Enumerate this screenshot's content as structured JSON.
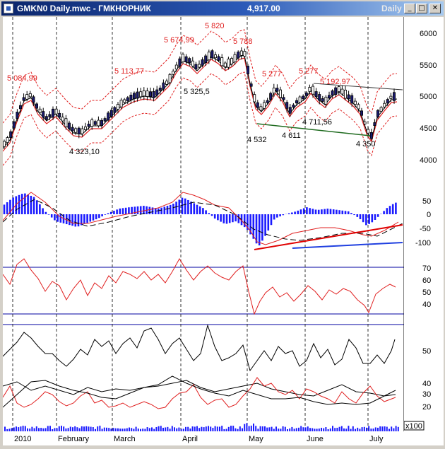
{
  "window": {
    "title": "GMKN0 Daily.mwc - ГМКНОРНИК",
    "price": "4,917.00",
    "period": "Daily",
    "buttons": {
      "minimize": "_",
      "maximize": "□",
      "close": "✕"
    }
  },
  "colors": {
    "background": "#ffffff",
    "candle_up": "#ffffff",
    "candle_down": "#1a1a6e",
    "ma_red": "#e02020",
    "ma_black": "#000000",
    "band_red": "#e02020",
    "histogram": "#1a1aff",
    "trend_red": "#e00000",
    "trend_blue": "#2040e0",
    "trend_green": "#1f6b1f",
    "panel_line": "#0000a0"
  },
  "price_panel": {
    "axis_ticks": [
      "6000",
      "5500",
      "5000",
      "4500",
      "4000"
    ],
    "annotations": [
      {
        "text": "5 084,99",
        "color": "red"
      },
      {
        "text": "5 113,77",
        "color": "red"
      },
      {
        "text": "5 674,99",
        "color": "red"
      },
      {
        "text": "5 820",
        "color": "red"
      },
      {
        "text": "5 788",
        "color": "red"
      },
      {
        "text": "5 277",
        "color": "red"
      },
      {
        "text": "5 277",
        "color": "red"
      },
      {
        "text": "5 192,97",
        "color": "red"
      },
      {
        "text": "5 325,5",
        "color": "black"
      },
      {
        "text": "4 323,10",
        "color": "black"
      },
      {
        "text": "4 532",
        "color": "black"
      },
      {
        "text": "4 611",
        "color": "black"
      },
      {
        "text": "4 711,56",
        "color": "black"
      },
      {
        "text": "4 350",
        "color": "black"
      }
    ]
  },
  "macd_panel": {
    "axis_ticks": [
      "50",
      "0",
      "-50",
      "-100"
    ]
  },
  "rsi_panel": {
    "axis_ticks": [
      "70",
      "60",
      "50",
      "40"
    ]
  },
  "dmi_panel": {
    "axis_ticks": [
      "50",
      "40",
      "30",
      "20"
    ]
  },
  "volume_panel": {
    "multiplier": "x100"
  },
  "date_axis": [
    "2010",
    "February",
    "March",
    "April",
    "May",
    "June",
    "July"
  ]
}
